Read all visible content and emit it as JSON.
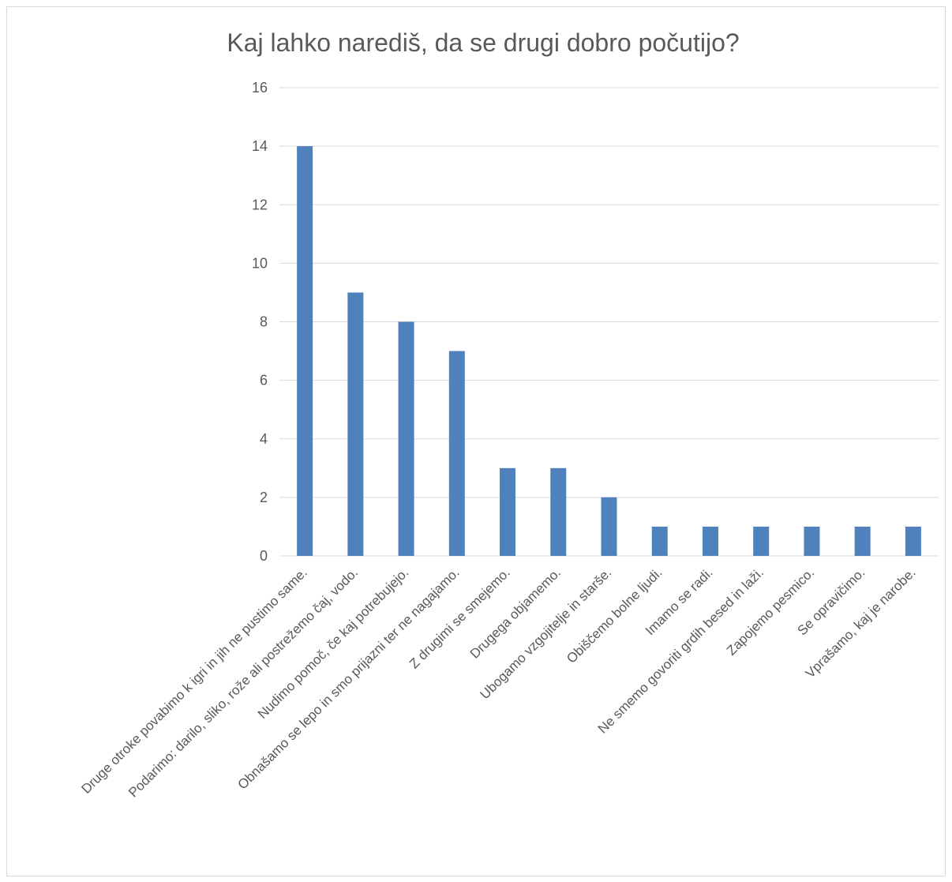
{
  "chart_data": {
    "type": "bar",
    "title": "Kaj lahko narediš, da se drugi dobro počutijo?",
    "xlabel": "",
    "ylabel": "",
    "ylim": [
      0,
      16
    ],
    "yticks": [
      0,
      2,
      4,
      6,
      8,
      10,
      12,
      14,
      16
    ],
    "grid": true,
    "legend": "none",
    "colors": {
      "bar": "#4f81bd",
      "grid": "#d9d9d9",
      "text": "#595959"
    },
    "categories": [
      "Druge otroke povabimo k igri in jih ne pustimo same.",
      "Podarimo: darilo, sliko, rože ali postrežemo čaj, vodo.",
      "Nudimo pomoč, če kaj potrebujejo.",
      "Obnašamo se lepo in smo prijazni ter ne nagajamo.",
      "Z drugimi se smejemo.",
      "Drugega objamemo.",
      "Ubogamo vzgojitelje in starše.",
      "Obiščemo bolne ljudi.",
      "Imamo se radi.",
      "Ne smemo govoriti grdih besed in laži.",
      "Zapojemo pesmico.",
      "Se opravičimo.",
      "Vprašamo, kaj je narobe."
    ],
    "values": [
      14,
      9,
      8,
      7,
      3,
      3,
      2,
      1,
      1,
      1,
      1,
      1,
      1
    ]
  }
}
